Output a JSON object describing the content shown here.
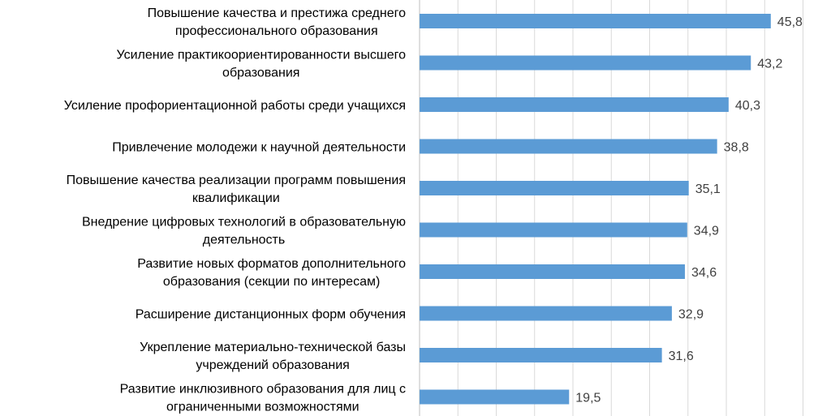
{
  "chart_data": {
    "type": "bar",
    "orientation": "horizontal",
    "title": "",
    "xlabel": "",
    "ylabel": "",
    "xlim": [
      0,
      50
    ],
    "grid": true,
    "legend": "none",
    "bar_color": "#5b9bd5",
    "decimal_separator": ",",
    "categories": [
      [
        "Повышение качества и престижа среднего",
        "профессионального образования"
      ],
      [
        "Усиление практикоориентированности высшего",
        "образования"
      ],
      [
        "Усиление профориентационной работы среди учащихся"
      ],
      [
        "Привлечение молодежи к научной деятельности"
      ],
      [
        "Повышение качества реализации программ повышения",
        "квалификации"
      ],
      [
        "Внедрение цифровых технологий в образовательную",
        "деятельность"
      ],
      [
        "Развитие новых форматов дополнительного",
        "образования (секции по интересам)"
      ],
      [
        "Расширение дистанционных форм обучения"
      ],
      [
        "Укрепление материально-технической базы",
        "учреждений образования"
      ],
      [
        "Развитие инклюзивного образования для лиц с",
        "ограниченными возможностями"
      ]
    ],
    "values": [
      45.8,
      43.2,
      40.3,
      38.8,
      35.1,
      34.9,
      34.6,
      32.9,
      31.6,
      19.5
    ]
  }
}
